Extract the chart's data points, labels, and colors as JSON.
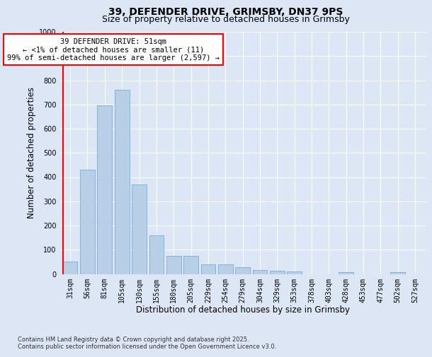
{
  "title_line1": "39, DEFENDER DRIVE, GRIMSBY, DN37 9PS",
  "title_line2": "Size of property relative to detached houses in Grimsby",
  "xlabel": "Distribution of detached houses by size in Grimsby",
  "ylabel": "Number of detached properties",
  "categories": [
    "31sqm",
    "56sqm",
    "81sqm",
    "105sqm",
    "130sqm",
    "155sqm",
    "180sqm",
    "205sqm",
    "229sqm",
    "254sqm",
    "279sqm",
    "304sqm",
    "329sqm",
    "353sqm",
    "378sqm",
    "403sqm",
    "428sqm",
    "453sqm",
    "477sqm",
    "502sqm",
    "527sqm"
  ],
  "values": [
    50,
    430,
    695,
    760,
    370,
    160,
    75,
    75,
    38,
    38,
    28,
    15,
    12,
    10,
    0,
    0,
    8,
    0,
    0,
    8,
    0
  ],
  "bar_color": "#b8cfe8",
  "bar_edge_color": "#6a9fd8",
  "vline_color": "red",
  "ylim": [
    0,
    1000
  ],
  "yticks": [
    0,
    100,
    200,
    300,
    400,
    500,
    600,
    700,
    800,
    900,
    1000
  ],
  "annotation_line1": "39 DEFENDER DRIVE: 51sqm",
  "annotation_line2": "← <1% of detached houses are smaller (11)",
  "annotation_line3": "99% of semi-detached houses are larger (2,597) →",
  "annotation_box_color": "white",
  "annotation_box_edge_color": "red",
  "footer_line1": "Contains HM Land Registry data © Crown copyright and database right 2025.",
  "footer_line2": "Contains public sector information licensed under the Open Government Licence v3.0.",
  "bg_color": "#dce6f5",
  "plot_bg_color": "#dce6f5",
  "grid_color": "white",
  "title_fontsize": 10,
  "subtitle_fontsize": 9,
  "label_fontsize": 8.5,
  "tick_fontsize": 7,
  "annotation_fontsize": 7.5,
  "footer_fontsize": 6
}
